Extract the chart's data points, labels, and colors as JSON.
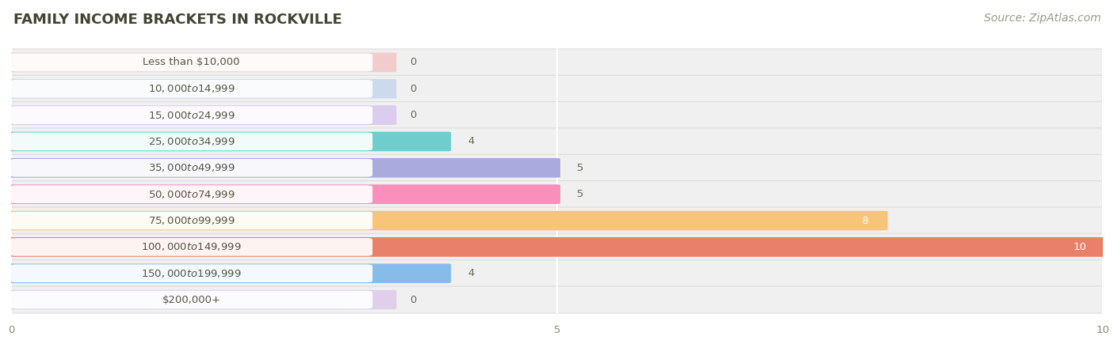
{
  "title": "FAMILY INCOME BRACKETS IN ROCKVILLE",
  "source": "Source: ZipAtlas.com",
  "categories": [
    "Less than $10,000",
    "$10,000 to $14,999",
    "$15,000 to $24,999",
    "$25,000 to $34,999",
    "$35,000 to $49,999",
    "$50,000 to $74,999",
    "$75,000 to $99,999",
    "$100,000 to $149,999",
    "$150,000 to $199,999",
    "$200,000+"
  ],
  "values": [
    0,
    0,
    0,
    4,
    5,
    5,
    8,
    10,
    4,
    0
  ],
  "bar_colors": [
    "#f5aaaa",
    "#aac5ea",
    "#c9aaeb",
    "#6ecece",
    "#aaaadf",
    "#f98fba",
    "#f8c47a",
    "#e8806a",
    "#88bce8",
    "#d0b0e8"
  ],
  "xlim": [
    0,
    10
  ],
  "xticks": [
    0,
    5,
    10
  ],
  "background_color": "#ffffff",
  "row_bg_color": "#f0f0f0",
  "bar_bg_color": "#e0e0e0",
  "title_fontsize": 13,
  "source_fontsize": 10,
  "label_fontsize": 9.5,
  "value_fontsize": 9.5,
  "value_color": "#666655",
  "value_color_white": "#ffffff",
  "title_color": "#444433",
  "label_text_color": "#555544"
}
